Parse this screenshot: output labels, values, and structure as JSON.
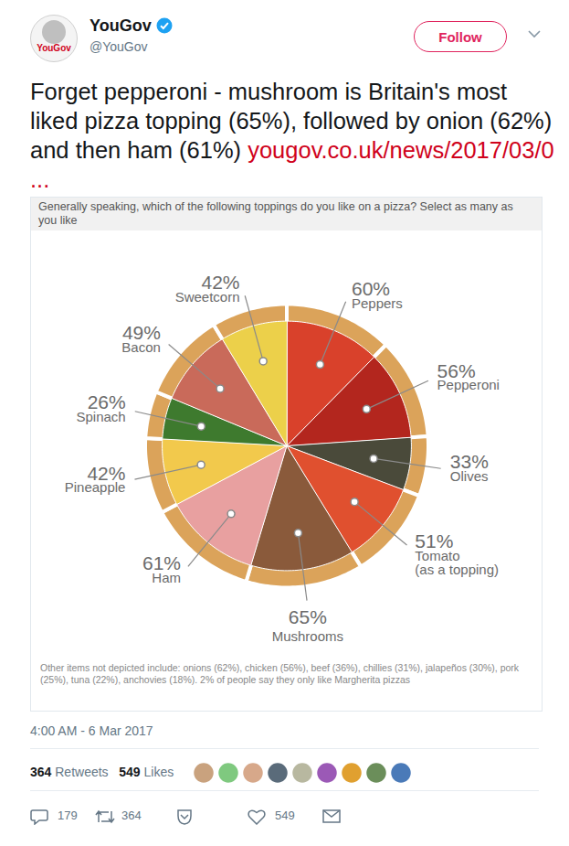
{
  "tweet": {
    "name": "YouGov",
    "handle": "@YouGov",
    "button": "Follow",
    "text": "Forget pepperoni - mushroom is Britain's most liked pizza topping (65%), followed by onion (62%) and then ham (61%)",
    "link": "yougov.co.uk/news/2017/03/0 ...",
    "time": "4:00 AM - 6 Mar 2017",
    "retweets": 364,
    "retweets_label": "Retweets",
    "likes": 549,
    "likes_label": "Likes",
    "replies": 179
  },
  "chart_data": {
    "type": "pie",
    "title": "Generally speaking, which of the following toppings do you like on a pizza? Select as many as you like",
    "categories": [
      "Peppers",
      "Pepperoni",
      "Olives",
      "Tomato\n(as a topping)",
      "Mushrooms",
      "Ham",
      "Pineapple",
      "Spinach",
      "Bacon",
      "Sweetcorn"
    ],
    "values": [
      60,
      56,
      33,
      51,
      65,
      61,
      42,
      26,
      49,
      42
    ],
    "value_labels": [
      "60%",
      "56%",
      "33%",
      "51%",
      "65%",
      "61%",
      "42%",
      "26%",
      "49%",
      "42%"
    ],
    "data_labels": true,
    "colors": [
      "#d9412b",
      "#b3261e",
      "#4a4a3a",
      "#e0502f",
      "#8a5a3b",
      "#e8a0a0",
      "#f2c94c",
      "#3e7a2e",
      "#c96a5a",
      "#ecd04a"
    ],
    "caption": "Other items not depicted include: onions (62%), chicken (56%), beef (36%), chillies (31%), jalapeños (30%), pork (25%), tuna (22%), anchovies (18%). 2% of people say they only like Margherita pizzas"
  }
}
